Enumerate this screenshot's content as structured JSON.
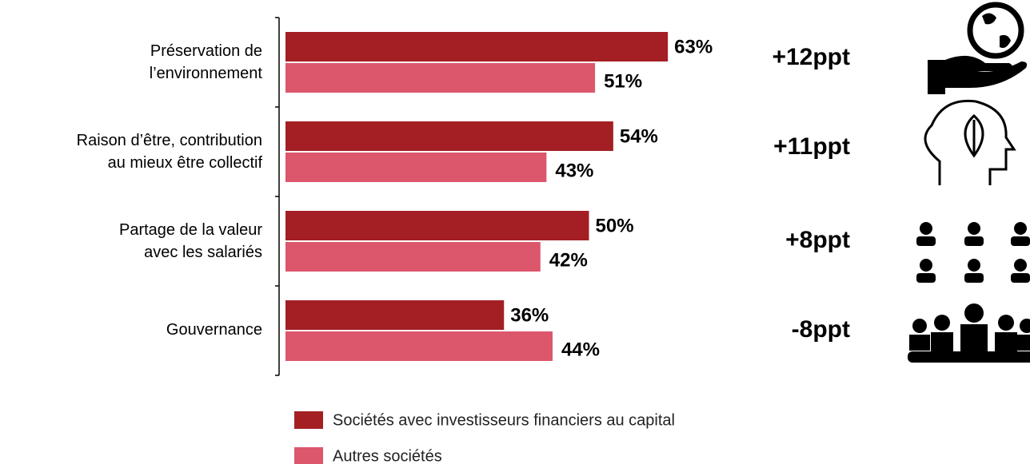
{
  "chart_data": {
    "type": "bar",
    "orientation": "horizontal",
    "categories": [
      [
        "Préservation de",
        "l’environnement"
      ],
      [
        "Raison d’être, contribution",
        "au mieux être collectif"
      ],
      [
        "Partage de la valeur",
        "avec les salariés"
      ],
      [
        "Gouvernance"
      ]
    ],
    "series": [
      {
        "name": "Sociétés avec investisseurs financiers au capital",
        "color": "#a31f24",
        "values": [
          63,
          54,
          50,
          36
        ],
        "value_labels": [
          "63%",
          "54%",
          "50%",
          "36%"
        ]
      },
      {
        "name": "Autres sociétés",
        "color": "#dc566c",
        "values": [
          51,
          43,
          42,
          44
        ],
        "value_labels": [
          "51%",
          "43%",
          "42%",
          "44%"
        ]
      }
    ],
    "annotations": [
      "+12ppt",
      "+11ppt",
      "+8ppt",
      "-8ppt"
    ],
    "xlim": [
      0,
      100
    ]
  }
}
